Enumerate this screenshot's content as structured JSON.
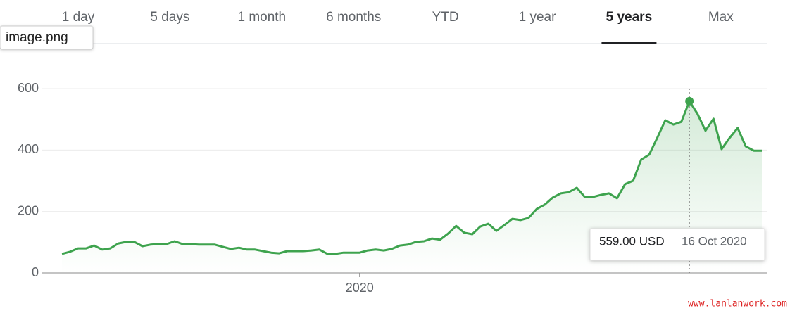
{
  "tabs": [
    "1 day",
    "5 days",
    "1 month",
    "6 months",
    "YTD",
    "1 year",
    "5 years",
    "Max"
  ],
  "selected_tab": 6,
  "file_label": "image.png",
  "watermark": "www.lanlanwork.com",
  "chart_data": {
    "type": "line",
    "categories": [
      null,
      null,
      null,
      null,
      null,
      null,
      null,
      null,
      null,
      null,
      null,
      null,
      null,
      null,
      null,
      null,
      null,
      null,
      null,
      null,
      null,
      null,
      null,
      null,
      null,
      null,
      null,
      null,
      null,
      null,
      null,
      null,
      null,
      null,
      null,
      null,
      null,
      "2020",
      null,
      null,
      null,
      null,
      null,
      null,
      null,
      null,
      null,
      null,
      null,
      null,
      null,
      null,
      null,
      null,
      null,
      null,
      null,
      null,
      null,
      null,
      null,
      null,
      null,
      null,
      null,
      null,
      null,
      null,
      null,
      null,
      null,
      null,
      null,
      null,
      null,
      null,
      null,
      null,
      null,
      null,
      null,
      null,
      null,
      null,
      null,
      null,
      null,
      null
    ],
    "series": [
      {
        "color": "#3ea34e",
        "values": [
          62,
          69,
          80,
          80,
          89,
          76,
          80,
          96,
          101,
          101,
          87,
          92,
          94,
          94,
          103,
          94,
          94,
          92,
          92,
          92,
          85,
          78,
          82,
          76,
          76,
          71,
          66,
          64,
          71,
          71,
          71,
          73,
          76,
          62,
          62,
          66,
          66,
          66,
          73,
          76,
          73,
          78,
          89,
          92,
          101,
          103,
          112,
          108,
          128,
          153,
          131,
          126,
          151,
          160,
          137,
          156,
          176,
          172,
          179,
          208,
          222,
          245,
          259,
          263,
          277,
          247,
          247,
          254,
          259,
          243,
          289,
          300,
          369,
          385,
          440,
          497,
          483,
          492,
          559,
          518,
          463,
          502,
          403,
          440,
          472,
          412,
          398,
          398
        ]
      }
    ],
    "ylim": [
      0,
      600
    ],
    "yticks": [
      0,
      200,
      400,
      600
    ],
    "grid": true,
    "highlight_index": 78,
    "tooltip": {
      "label": "559.00 USD",
      "date": "16 Oct 2020"
    }
  }
}
